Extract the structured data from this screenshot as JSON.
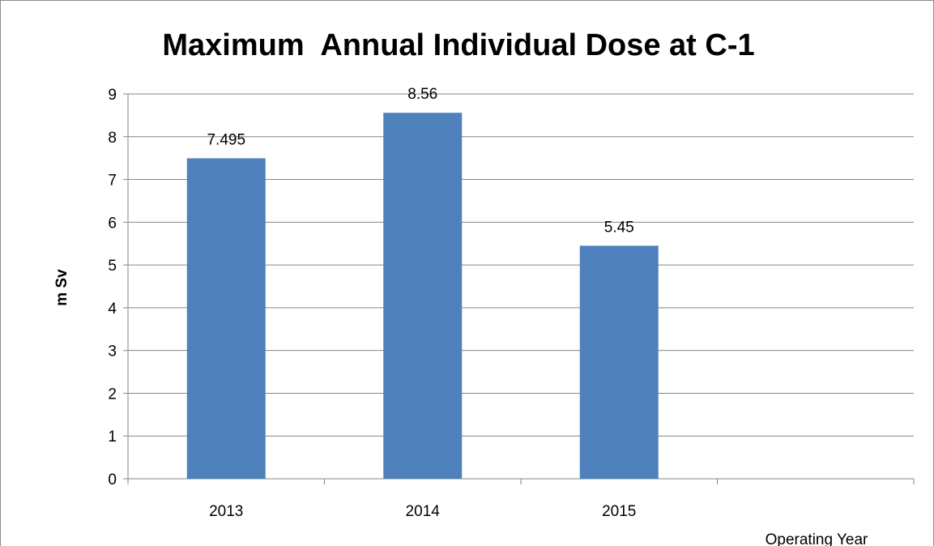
{
  "chart_data": {
    "type": "bar",
    "title": "Maximum  Annual Individual Dose at C-1",
    "xlabel": "Operating Year",
    "ylabel": "m Sv",
    "categories": [
      "2013",
      "2014",
      "2015",
      ""
    ],
    "values": [
      7.495,
      8.56,
      5.45,
      null
    ],
    "data_labels": [
      "7.495",
      "8.56",
      "5.45",
      ""
    ],
    "ylim": [
      0,
      9
    ],
    "yticks": [
      "0",
      "1",
      "2",
      "3",
      "4",
      "5",
      "6",
      "7",
      "8",
      "9"
    ],
    "grid": true,
    "legend": "none",
    "bar_color": "#4F81BD",
    "grid_color": "#868686"
  }
}
